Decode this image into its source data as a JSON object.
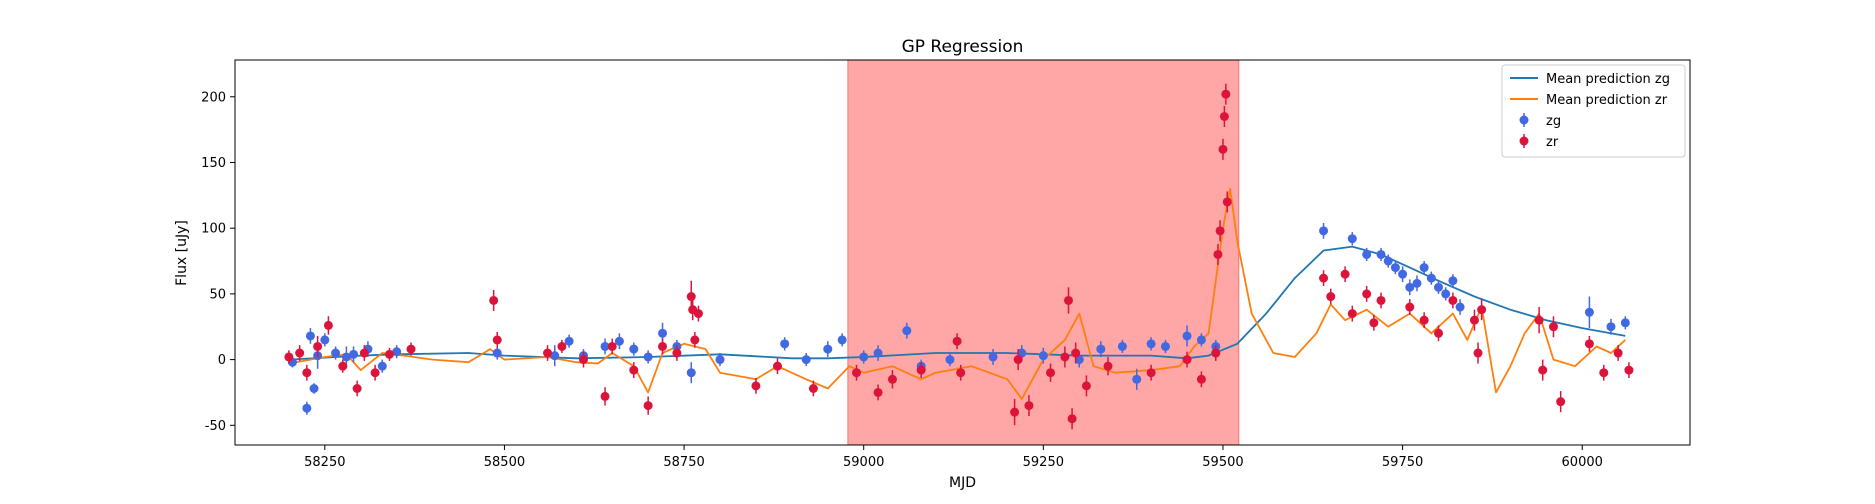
{
  "chart_data": {
    "type": "scatter",
    "title": "GP Regression",
    "xlabel": "MJD",
    "ylabel": "Flux [uJy]",
    "xlim": [
      58125,
      60150
    ],
    "ylim": [
      -65,
      228
    ],
    "xticks": [
      58250,
      58500,
      58750,
      59000,
      59250,
      59500,
      59750,
      60000
    ],
    "yticks": [
      -50,
      0,
      50,
      100,
      150,
      200
    ],
    "grid": false,
    "legend_position": "top-right",
    "shaded_region": {
      "x": [
        58978,
        59522
      ],
      "color": "#ffa6a6"
    },
    "legend": [
      {
        "label": "Mean prediction zg",
        "kind": "line",
        "color": "#1f77b4"
      },
      {
        "label": "Mean prediction zr",
        "kind": "line",
        "color": "#ff7f0e"
      },
      {
        "label": "zg",
        "kind": "marker",
        "color": "#4169e1"
      },
      {
        "label": "zr",
        "kind": "marker",
        "color": "#dc143c"
      }
    ],
    "series": [
      {
        "name": "Mean prediction zg",
        "kind": "line",
        "color": "#1f77b4",
        "x": [
          58200,
          58300,
          58350,
          58450,
          58500,
          58600,
          58700,
          58800,
          58900,
          58950,
          59000,
          59100,
          59200,
          59300,
          59400,
          59450,
          59480,
          59520,
          59560,
          59600,
          59640,
          59680,
          59720,
          59760,
          59800,
          59850,
          59900,
          59950,
          60000,
          60060
        ],
        "values": [
          0,
          3,
          4,
          5,
          3,
          1,
          2,
          4,
          1,
          1,
          2,
          5,
          5,
          3,
          3,
          1,
          3,
          12,
          35,
          62,
          83,
          86,
          80,
          70,
          60,
          48,
          38,
          30,
          24,
          18
        ]
      },
      {
        "name": "Mean prediction zr",
        "kind": "line",
        "color": "#ff7f0e",
        "x": [
          58200,
          58250,
          58280,
          58300,
          58330,
          58360,
          58400,
          58450,
          58480,
          58500,
          58560,
          58600,
          58630,
          58650,
          58680,
          58700,
          58720,
          58750,
          58780,
          58800,
          58850,
          58880,
          58920,
          58950,
          58980,
          59000,
          59040,
          59080,
          59100,
          59150,
          59200,
          59220,
          59250,
          59280,
          59300,
          59320,
          59350,
          59400,
          59440,
          59460,
          59480,
          59500,
          59510,
          59520,
          59540,
          59570,
          59600,
          59630,
          59650,
          59670,
          59700,
          59730,
          59760,
          59790,
          59820,
          59840,
          59860,
          59880,
          59900,
          59920,
          59940,
          59960,
          59990,
          60020,
          60040,
          60060
        ],
        "values": [
          -3,
          2,
          4,
          -8,
          5,
          3,
          0,
          -2,
          8,
          0,
          2,
          -2,
          -3,
          5,
          -5,
          -25,
          5,
          12,
          8,
          -10,
          -15,
          -5,
          -15,
          -22,
          -5,
          -10,
          -5,
          -15,
          -10,
          -5,
          -15,
          -30,
          0,
          15,
          35,
          -5,
          -10,
          -8,
          -5,
          10,
          20,
          100,
          130,
          90,
          35,
          5,
          2,
          20,
          42,
          30,
          38,
          25,
          35,
          20,
          35,
          15,
          40,
          -25,
          -5,
          20,
          35,
          0,
          -5,
          10,
          5,
          15
        ]
      },
      {
        "name": "zg",
        "kind": "scatter",
        "color": "#4169e1",
        "x": [
          58205,
          58225,
          58230,
          58235,
          58240,
          58250,
          58265,
          58280,
          58290,
          58310,
          58330,
          58350,
          58490,
          58570,
          58590,
          58610,
          58640,
          58660,
          58680,
          58700,
          58720,
          58740,
          58760,
          58800,
          58890,
          58920,
          58950,
          58970,
          59000,
          59020,
          59060,
          59080,
          59120,
          59180,
          59220,
          59250,
          59300,
          59330,
          59360,
          59380,
          59400,
          59420,
          59450,
          59470,
          59490,
          59640,
          59680,
          59700,
          59720,
          59730,
          59740,
          59750,
          59760,
          59770,
          59780,
          59790,
          59800,
          59810,
          59820,
          59830,
          60010,
          60040,
          60060
        ],
        "values": [
          -2,
          -37,
          18,
          -22,
          3,
          15,
          5,
          2,
          4,
          8,
          -5,
          6,
          5,
          3,
          14,
          3,
          10,
          14,
          8,
          2,
          20,
          10,
          -10,
          0,
          12,
          0,
          8,
          15,
          2,
          5,
          22,
          -5,
          0,
          2,
          5,
          3,
          0,
          8,
          10,
          -15,
          12,
          10,
          18,
          15,
          10,
          98,
          92,
          80,
          80,
          75,
          70,
          65,
          55,
          58,
          70,
          62,
          55,
          50,
          60,
          40,
          36,
          25,
          28
        ],
        "error": [
          4,
          5,
          6,
          4,
          10,
          5,
          5,
          8,
          6,
          6,
          5,
          5,
          5,
          8,
          5,
          5,
          6,
          6,
          5,
          5,
          8,
          5,
          8,
          5,
          5,
          5,
          6,
          5,
          5,
          6,
          6,
          5,
          5,
          6,
          6,
          6,
          6,
          6,
          5,
          8,
          5,
          5,
          8,
          5,
          5,
          6,
          5,
          5,
          5,
          5,
          5,
          6,
          6,
          6,
          5,
          5,
          5,
          5,
          5,
          6,
          12,
          6,
          5
        ]
      },
      {
        "name": "zr",
        "kind": "scatter",
        "color": "#dc143c",
        "x": [
          58200,
          58215,
          58225,
          58240,
          58255,
          58275,
          58295,
          58305,
          58320,
          58340,
          58370,
          58485,
          58490,
          58560,
          58580,
          58610,
          58640,
          58650,
          58680,
          58700,
          58720,
          58740,
          58760,
          58762,
          58765,
          58770,
          58850,
          58880,
          58930,
          58990,
          59020,
          59040,
          59080,
          59130,
          59135,
          59210,
          59215,
          59230,
          59260,
          59280,
          59285,
          59290,
          59295,
          59310,
          59340,
          59400,
          59450,
          59470,
          59490,
          59493,
          59496,
          59500,
          59502,
          59504,
          59506,
          59640,
          59650,
          59670,
          59680,
          59700,
          59710,
          59720,
          59760,
          59780,
          59800,
          59820,
          59850,
          59855,
          59860,
          59940,
          59945,
          59960,
          59970,
          60010,
          60030,
          60050,
          60065
        ],
        "values": [
          2,
          5,
          -10,
          10,
          26,
          -5,
          -22,
          5,
          -10,
          4,
          8,
          45,
          15,
          5,
          10,
          0,
          -28,
          10,
          -8,
          -35,
          10,
          5,
          48,
          38,
          15,
          35,
          -20,
          -5,
          -22,
          -10,
          -25,
          -15,
          -8,
          14,
          -10,
          -40,
          0,
          -35,
          -10,
          2,
          45,
          -45,
          5,
          -20,
          -5,
          -10,
          0,
          -15,
          5,
          80,
          98,
          160,
          185,
          202,
          120,
          62,
          48,
          65,
          35,
          50,
          28,
          45,
          40,
          30,
          20,
          45,
          30,
          5,
          38,
          30,
          -8,
          25,
          -32,
          12,
          -10,
          5,
          -8
        ],
        "error": [
          5,
          6,
          6,
          8,
          7,
          5,
          6,
          6,
          6,
          5,
          5,
          8,
          6,
          6,
          5,
          6,
          7,
          6,
          6,
          7,
          6,
          6,
          12,
          8,
          6,
          6,
          6,
          6,
          6,
          6,
          6,
          7,
          6,
          6,
          6,
          10,
          8,
          8,
          7,
          8,
          10,
          8,
          8,
          8,
          7,
          6,
          6,
          6,
          6,
          8,
          8,
          8,
          8,
          8,
          8,
          6,
          6,
          6,
          6,
          6,
          6,
          6,
          6,
          6,
          6,
          6,
          8,
          8,
          8,
          10,
          8,
          8,
          8,
          6,
          6,
          6,
          6
        ]
      }
    ]
  }
}
